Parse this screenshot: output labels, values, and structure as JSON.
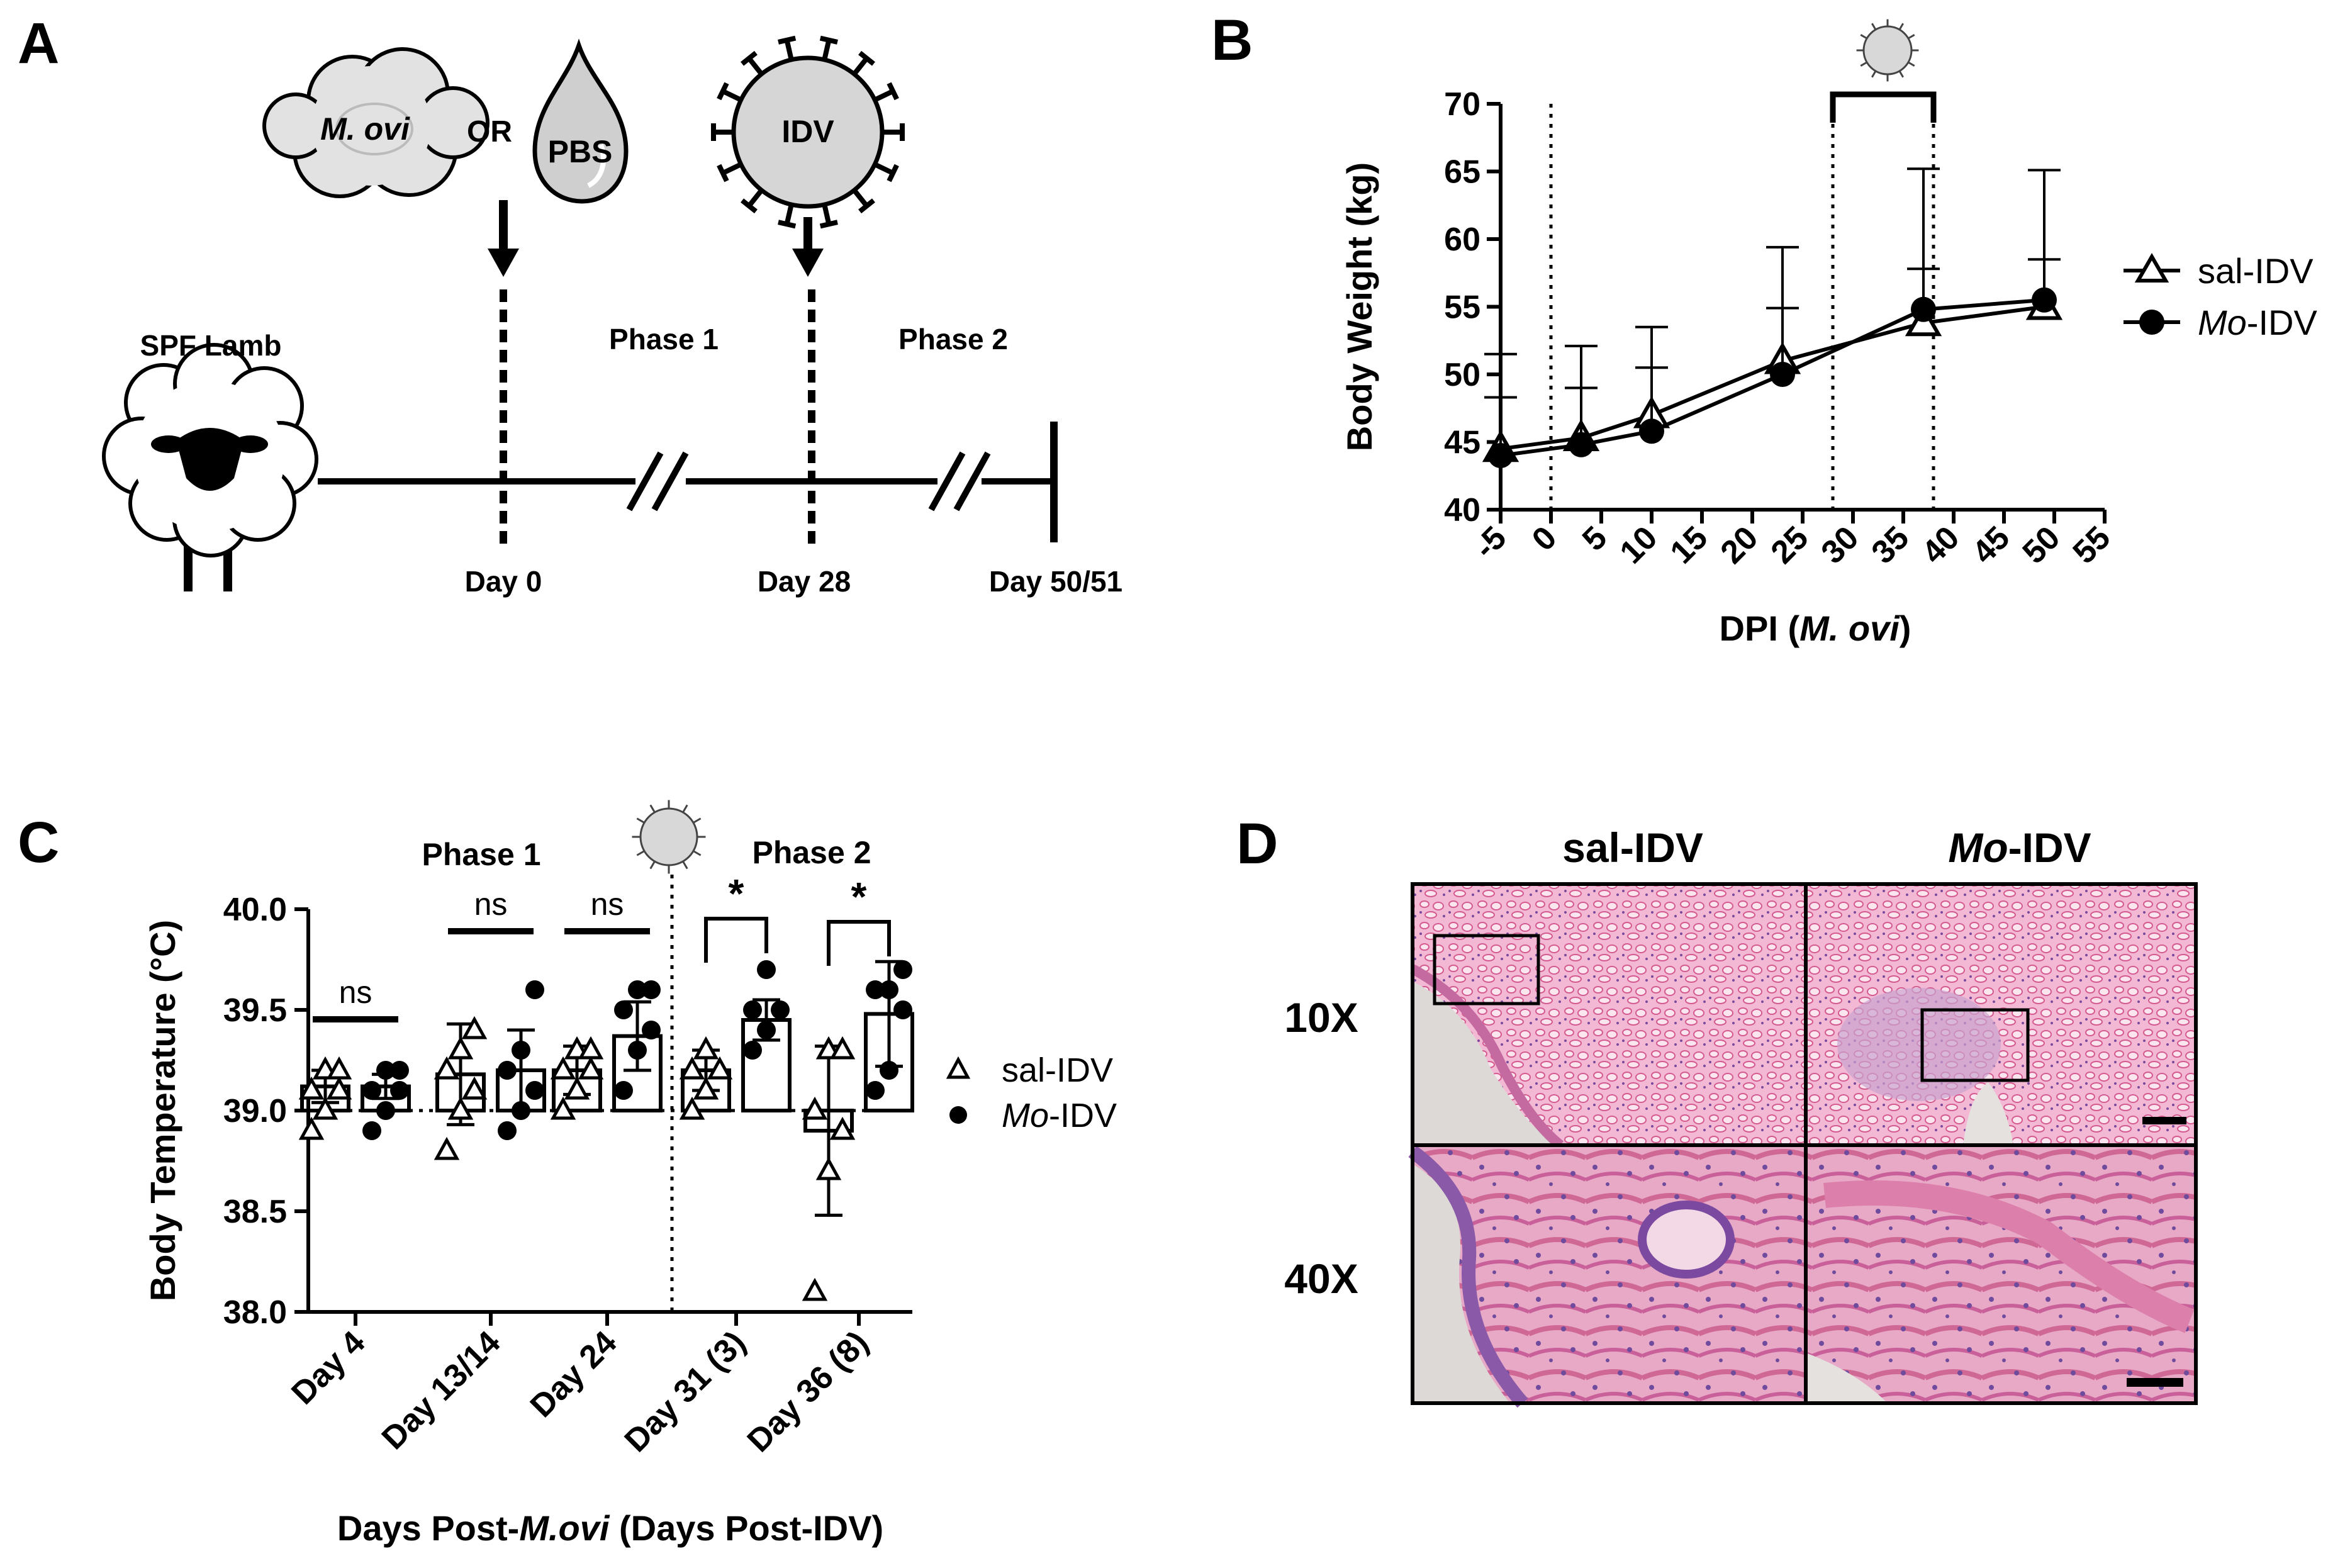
{
  "panels": {
    "A": {
      "letter": "A",
      "mycoplasma_label": "M. ovi",
      "or_label": "OR",
      "pbs_label": "PBS",
      "virus_label": "IDV",
      "lamb_label": "SPF Lamb",
      "phase1_label": "Phase 1",
      "phase2_label": "Phase 2",
      "day0_label": "Day 0",
      "day28_label": "Day 28",
      "day_end_label": "Day 50/51"
    },
    "B": {
      "letter": "B"
    },
    "C": {
      "letter": "C",
      "phase1_label": "Phase 1",
      "phase2_label": "Phase 2"
    },
    "D": {
      "letter": "D",
      "col1_label": "sal-IDV",
      "col2_label_italic": "Mo",
      "col2_label_rest": "-IDV",
      "row1_label": "10X",
      "row2_label": "40X"
    }
  },
  "chart_data": [
    {
      "id": "B",
      "type": "line",
      "title": "",
      "xlabel_prefix": "DPI (",
      "xlabel_italic": "M. ovi",
      "xlabel_suffix": ")",
      "ylabel": "Body Weight (kg)",
      "xlim": [
        -5,
        55
      ],
      "ylim": [
        40,
        70
      ],
      "xticks": [
        "-5",
        "0",
        "5",
        "10",
        "15",
        "20",
        "25",
        "30",
        "35",
        "40",
        "45",
        "50",
        "55"
      ],
      "yticks": [
        "40",
        "45",
        "50",
        "55",
        "60",
        "65",
        "70"
      ],
      "legend_position": "right",
      "series": [
        {
          "name": "sal-IDV",
          "marker": "triangle-open",
          "x": [
            -5,
            3,
            10,
            23,
            37,
            49
          ],
          "y": [
            44.5,
            45.3,
            47.0,
            51.0,
            53.8,
            55.0
          ],
          "err": [
            7.0,
            6.8,
            6.5,
            8.4,
            11.4,
            10.1
          ]
        },
        {
          "name": "Mo-IDV",
          "name_italic": "Mo",
          "name_rest": "-IDV",
          "marker": "circle-filled",
          "x": [
            -5,
            3,
            10,
            23,
            37,
            49
          ],
          "y": [
            44.0,
            44.8,
            45.8,
            50.0,
            54.8,
            55.5
          ],
          "err": [
            4.3,
            4.2,
            4.7,
            4.9,
            3.0,
            3.0
          ]
        }
      ],
      "annotations": {
        "reference_lines_x": [
          0,
          28,
          38
        ],
        "virus_bracket_x": [
          28,
          38
        ]
      }
    },
    {
      "id": "C",
      "type": "bar",
      "title": "",
      "xlabel_prefix": "Days Post-",
      "xlabel_italic": "M.ovi",
      "xlabel_suffix": " (Days Post-IDV)",
      "ylabel": "Body Temperature (°C)",
      "ylim": [
        38.0,
        40.0
      ],
      "yticks": [
        "38.0",
        "38.5",
        "39.0",
        "39.5",
        "40.0"
      ],
      "categories": [
        "Day 4",
        "Day 13/14",
        "Day 24",
        "Day 31 (3)",
        "Day 36 (8)"
      ],
      "reference_line_y": 39.0,
      "legend_position": "right",
      "significance": [
        "ns",
        "ns",
        "ns",
        "*",
        "*"
      ],
      "series": [
        {
          "name": "sal-IDV",
          "marker": "triangle-open",
          "values": [
            39.12,
            39.18,
            39.2,
            39.2,
            38.9
          ],
          "err": [
            0.08,
            0.25,
            0.12,
            0.1,
            0.42
          ],
          "points": [
            [
              38.9,
              39.0,
              39.1,
              39.1,
              39.2,
              39.2
            ],
            [
              38.8,
              39.0,
              39.1,
              39.2,
              39.3,
              39.4
            ],
            [
              39.0,
              39.1,
              39.2,
              39.2,
              39.3,
              39.3
            ],
            [
              39.0,
              39.1,
              39.2,
              39.2,
              39.3
            ],
            [
              38.1,
              38.7,
              38.9,
              39.0,
              39.3,
              39.3
            ]
          ]
        },
        {
          "name": "Mo-IDV",
          "name_italic": "Mo",
          "name_rest": "-IDV",
          "marker": "circle-filled",
          "values": [
            39.12,
            39.2,
            39.37,
            39.45,
            39.48
          ],
          "err": [
            0.06,
            0.2,
            0.17,
            0.1,
            0.26
          ],
          "points": [
            [
              38.9,
              39.0,
              39.1,
              39.1,
              39.2,
              39.2
            ],
            [
              38.9,
              39.0,
              39.1,
              39.2,
              39.3,
              39.6
            ],
            [
              39.1,
              39.3,
              39.4,
              39.5,
              39.6,
              39.6
            ],
            [
              39.3,
              39.4,
              39.5,
              39.5,
              39.7
            ],
            [
              39.1,
              39.2,
              39.5,
              39.6,
              39.6,
              39.7
            ]
          ]
        }
      ]
    }
  ]
}
